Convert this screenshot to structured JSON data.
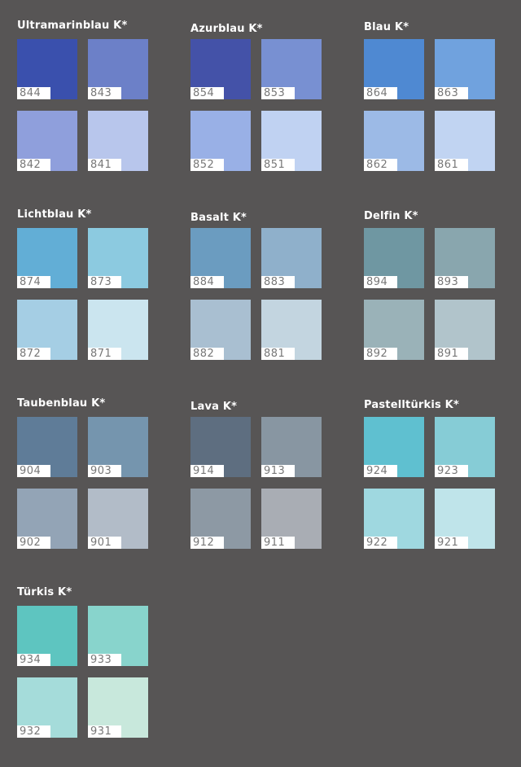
{
  "groups": [
    {
      "title": "Ultramarinblau K*",
      "swatches": [
        {
          "code": "844",
          "color": "#3a50ad"
        },
        {
          "code": "843",
          "color": "#6c80c8"
        },
        {
          "code": "842",
          "color": "#8f9fdc"
        },
        {
          "code": "841",
          "color": "#b8c6ec"
        }
      ]
    },
    {
      "title": "Azurblau K*",
      "swatches": [
        {
          "code": "854",
          "color": "#4452a8"
        },
        {
          "code": "853",
          "color": "#7890d2"
        },
        {
          "code": "852",
          "color": "#99b0e6"
        },
        {
          "code": "851",
          "color": "#c0d2f2"
        }
      ]
    },
    {
      "title": "Blau K*",
      "swatches": [
        {
          "code": "864",
          "color": "#4f89d2"
        },
        {
          "code": "863",
          "color": "#70a2de"
        },
        {
          "code": "862",
          "color": "#9cbae6"
        },
        {
          "code": "861",
          "color": "#c1d4f2"
        }
      ]
    },
    {
      "title": "Lichtblau K*",
      "swatches": [
        {
          "code": "874",
          "color": "#62aed6"
        },
        {
          "code": "873",
          "color": "#8ccae0"
        },
        {
          "code": "872",
          "color": "#a5cee4"
        },
        {
          "code": "871",
          "color": "#cbe5ef"
        }
      ]
    },
    {
      "title": "Basalt K*",
      "swatches": [
        {
          "code": "884",
          "color": "#6b9cc0"
        },
        {
          "code": "883",
          "color": "#8fb0cb"
        },
        {
          "code": "882",
          "color": "#a9bfd1"
        },
        {
          "code": "881",
          "color": "#c3d5e0"
        }
      ]
    },
    {
      "title": "Delfin K*",
      "swatches": [
        {
          "code": "894",
          "color": "#6f97a2"
        },
        {
          "code": "893",
          "color": "#89a6ae"
        },
        {
          "code": "892",
          "color": "#9ab2b8"
        },
        {
          "code": "891",
          "color": "#b1c4cb"
        }
      ]
    },
    {
      "title": "Taubenblau K*",
      "swatches": [
        {
          "code": "904",
          "color": "#5f7c98"
        },
        {
          "code": "903",
          "color": "#7595ae"
        },
        {
          "code": "902",
          "color": "#93a4b6"
        },
        {
          "code": "901",
          "color": "#b2bcc8"
        }
      ]
    },
    {
      "title": "Lava K*",
      "swatches": [
        {
          "code": "914",
          "color": "#5e6e80"
        },
        {
          "code": "913",
          "color": "#8896a2"
        },
        {
          "code": "912",
          "color": "#8d99a4"
        },
        {
          "code": "911",
          "color": "#a9adb4"
        }
      ]
    },
    {
      "title": "Pastelltürkis K*",
      "swatches": [
        {
          "code": "924",
          "color": "#5fc0d0"
        },
        {
          "code": "923",
          "color": "#86ccd6"
        },
        {
          "code": "922",
          "color": "#9fd8e0"
        },
        {
          "code": "921",
          "color": "#bfe4ea"
        }
      ]
    },
    {
      "title": "Türkis K*",
      "swatches": [
        {
          "code": "934",
          "color": "#5ec5c0"
        },
        {
          "code": "933",
          "color": "#88d4cc"
        },
        {
          "code": "932",
          "color": "#a5dcda"
        },
        {
          "code": "931",
          "color": "#c8e8dc"
        }
      ]
    }
  ]
}
